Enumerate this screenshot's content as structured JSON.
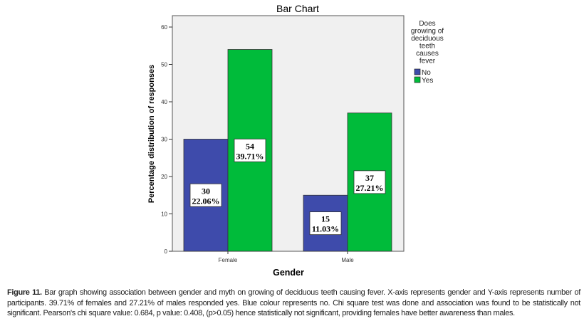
{
  "chart_data": {
    "type": "bar",
    "title": "Bar Chart",
    "xlabel": "Gender",
    "ylabel": "Percentage distribution of responses",
    "categories": [
      "Female",
      "Male"
    ],
    "ylim": [
      0,
      60
    ],
    "yticks": [
      0,
      10,
      20,
      30,
      40,
      50,
      60
    ],
    "legend": {
      "title": "Does growing of deciduous teeth causes fever",
      "title_lines": [
        "Does",
        "growing of",
        "deciduous",
        "teeth",
        "causes",
        "fever"
      ],
      "position": "right"
    },
    "series": [
      {
        "name": "No",
        "color": "#3e4bab",
        "values": [
          30,
          15
        ],
        "labels": [
          [
            "30",
            "22.06%"
          ],
          [
            "15",
            "11.03%"
          ]
        ]
      },
      {
        "name": "Yes",
        "color": "#00bb3a",
        "values": [
          54,
          37
        ],
        "labels": [
          [
            "54",
            "39.71%"
          ],
          [
            "37",
            "27.21%"
          ]
        ]
      }
    ]
  },
  "caption": {
    "label": "Figure 11.",
    "text": " Bar graph showing association between gender and myth on growing of deciduous teeth causing fever. X-axis represents gender and Y-axis represents number of participants. 39.71% of females and 27.21% of males responded yes. Blue colour represents no. Chi square test was done and association was found to be statistically not significant. Pearson's chi square value: 0.684, p value: 0.408, (p>0.05) hence statistically not significant, providing females have better awareness than males."
  }
}
